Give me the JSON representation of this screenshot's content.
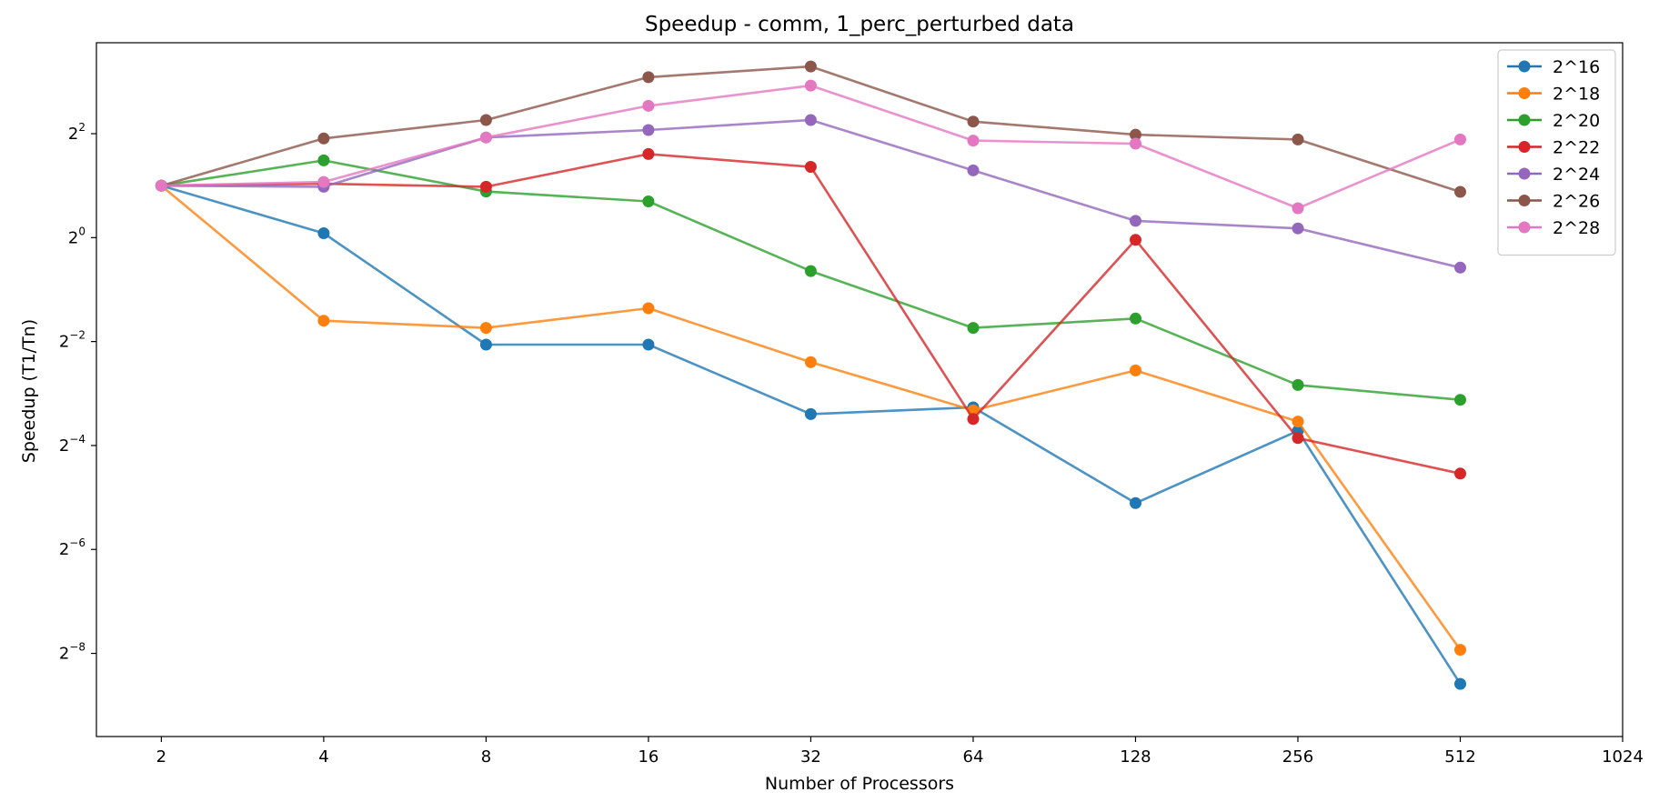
{
  "chart_data": {
    "type": "line",
    "title": "Speedup - comm, 1_perc_perturbed data",
    "xlabel": "Number of Processors",
    "ylabel": "Speedup (T1/Tn)",
    "x_scale": "log2",
    "y_scale": "log2",
    "x": [
      2,
      4,
      8,
      16,
      32,
      64,
      128,
      256,
      512
    ],
    "xticks": [
      2,
      4,
      8,
      16,
      32,
      64,
      128,
      256,
      512,
      1024
    ],
    "xtick_labels": [
      "2",
      "4",
      "8",
      "16",
      "32",
      "64",
      "128",
      "256",
      "512",
      "1024"
    ],
    "yticks_exp": [
      -8,
      -6,
      -4,
      -2,
      0,
      2
    ],
    "ytick_labels": [
      {
        "base": "2",
        "sup": "−8"
      },
      {
        "base": "2",
        "sup": "−6"
      },
      {
        "base": "2",
        "sup": "−4"
      },
      {
        "base": "2",
        "sup": "−2"
      },
      {
        "base": "2",
        "sup": "0"
      },
      {
        "base": "2",
        "sup": "2"
      }
    ],
    "xlim_exp": [
      0.6,
      10.0
    ],
    "ylim_exp": [
      -9.6,
      3.75
    ],
    "grid": false,
    "legend_position": "top-right",
    "series": [
      {
        "name": "2^16",
        "color": "#1f77b4",
        "values": [
          2.0,
          1.06,
          0.24,
          0.24,
          0.095,
          0.104,
          0.029,
          0.076,
          0.0026
        ]
      },
      {
        "name": "2^18",
        "color": "#ff7f0e",
        "values": [
          2.0,
          0.33,
          0.3,
          0.39,
          0.19,
          0.1,
          0.17,
          0.086,
          0.0041
        ]
      },
      {
        "name": "2^20",
        "color": "#2ca02c",
        "values": [
          2.0,
          2.8,
          1.85,
          1.62,
          0.64,
          0.3,
          0.34,
          0.14,
          0.115
        ]
      },
      {
        "name": "2^22",
        "color": "#d62728",
        "values": [
          2.0,
          2.05,
          1.97,
          3.05,
          2.57,
          0.089,
          0.97,
          0.069,
          0.043
        ]
      },
      {
        "name": "2^24",
        "color": "#9467bd",
        "values": [
          2.0,
          1.97,
          3.8,
          4.2,
          4.8,
          2.45,
          1.25,
          1.13,
          0.67
        ]
      },
      {
        "name": "2^26",
        "color": "#8c564b",
        "values": [
          2.0,
          3.75,
          4.8,
          8.5,
          9.8,
          4.7,
          3.95,
          3.7,
          1.84
        ]
      },
      {
        "name": "2^28",
        "color": "#e377c2",
        "values": [
          2.0,
          2.1,
          3.8,
          5.8,
          7.6,
          3.65,
          3.5,
          1.48,
          3.7
        ]
      }
    ]
  }
}
